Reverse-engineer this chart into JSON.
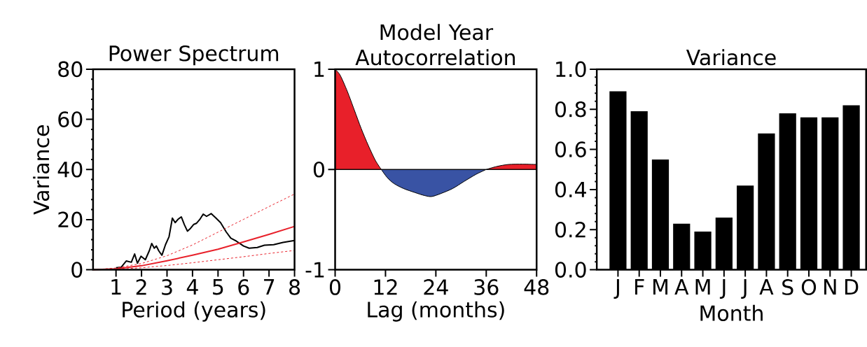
{
  "chart_data": [
    {
      "type": "line",
      "title": "Power Spectrum",
      "xlabel": "Period (years)",
      "ylabel": "Variance",
      "xlim": [
        0.1,
        8
      ],
      "xticks": [
        1,
        2,
        3,
        4,
        5,
        6,
        7,
        8
      ],
      "ylim": [
        0,
        80
      ],
      "yticks": [
        0,
        20,
        40,
        60,
        80
      ],
      "marker": "none",
      "series": [
        {
          "color": "#000000",
          "line_style": "solid",
          "x": [
            1.0,
            1.2,
            1.4,
            1.6,
            1.73,
            1.84,
            1.98,
            2.15,
            2.31,
            2.4,
            2.5,
            2.58,
            2.68,
            2.8,
            2.94,
            3.08,
            3.21,
            3.32,
            3.44,
            3.56,
            3.68,
            3.8,
            3.92,
            4.05,
            4.15,
            4.28,
            4.42,
            4.55,
            4.73,
            4.92,
            5.1,
            5.32,
            5.5,
            5.72,
            6.0,
            6.22,
            6.54,
            6.82,
            7.18,
            7.55,
            8.0
          ],
          "values": [
            0.8,
            1.0,
            3.5,
            3.0,
            6.3,
            2.6,
            5.4,
            4.0,
            7.7,
            10.5,
            8.6,
            9.5,
            7.5,
            5.8,
            10.0,
            13.2,
            20.6,
            18.8,
            20.2,
            21.1,
            18.0,
            15.4,
            16.5,
            18.1,
            18.5,
            20.0,
            22.2,
            21.3,
            22.4,
            20.6,
            18.8,
            15.1,
            12.6,
            11.4,
            9.5,
            8.6,
            8.9,
            9.8,
            10.0,
            10.9,
            11.7
          ]
        },
        {
          "color": "#e8202a",
          "line_style": "solid",
          "x": [
            0.1,
            1,
            2,
            3,
            4,
            5,
            6,
            7,
            8
          ],
          "values": [
            0,
            0.4,
            1.6,
            3.6,
            5.8,
            8.2,
            11.1,
            14.1,
            17.3
          ]
        },
        {
          "color": "#e8202a",
          "line_style": "dashed",
          "x": [
            0.1,
            1,
            2,
            3,
            4,
            5,
            6,
            7,
            8
          ],
          "values": [
            0,
            0.7,
            2.5,
            5.6,
            9.9,
            15.0,
            20.1,
            25.2,
            30.2
          ]
        },
        {
          "color": "#e8202a",
          "line_style": "dashed",
          "x": [
            0.1,
            1,
            2,
            3,
            4,
            5,
            6,
            7,
            8
          ],
          "values": [
            0,
            0.2,
            0.8,
            1.7,
            2.8,
            4.0,
            5.2,
            6.5,
            7.7
          ]
        }
      ]
    },
    {
      "type": "area",
      "title": "Model Year Autocorrelation",
      "xlabel": "Lag (months)",
      "xlim": [
        0,
        48
      ],
      "xticks": [
        0,
        12,
        24,
        36,
        48
      ],
      "ylim": [
        -1,
        1
      ],
      "yticks": [
        -1,
        0,
        1
      ],
      "ref_lines": [
        {
          "axis": "y",
          "value": 0,
          "color": "#000000"
        }
      ],
      "series": [
        {
          "color": "#e8202a",
          "x": [
            0,
            1.2,
            2.9,
            4.6,
            6.2,
            7.9,
            9.6,
            11
          ],
          "values": [
            1,
            0.94,
            0.78,
            0.59,
            0.41,
            0.24,
            0.09,
            0
          ]
        },
        {
          "color": "#3953a4",
          "x": [
            11,
            12.4,
            14,
            16.3,
            19,
            21.3,
            23,
            25.2,
            28,
            30.7,
            33.5,
            36
          ],
          "values": [
            0,
            -0.08,
            -0.14,
            -0.19,
            -0.23,
            -0.26,
            -0.27,
            -0.24,
            -0.19,
            -0.12,
            -0.05,
            0
          ]
        },
        {
          "color": "#e8202a",
          "x": [
            36,
            38.5,
            41.3,
            44.7,
            48
          ],
          "values": [
            0,
            0.03,
            0.05,
            0.053,
            0.05
          ]
        }
      ]
    },
    {
      "type": "bar",
      "title": "Variance",
      "xlabel": "Month",
      "categories": [
        "J",
        "F",
        "M",
        "A",
        "M",
        "J",
        "J",
        "A",
        "S",
        "O",
        "N",
        "D"
      ],
      "values": [
        0.89,
        0.79,
        0.55,
        0.23,
        0.19,
        0.26,
        0.42,
        0.68,
        0.78,
        0.76,
        0.76,
        0.82
      ],
      "color": "#000000",
      "ylim": [
        0,
        1
      ],
      "yticks": [
        {
          "value": 0,
          "label": "0.0"
        },
        0.2,
        0.4,
        0.6,
        0.8,
        {
          "value": 1,
          "label": "1.0"
        }
      ]
    }
  ]
}
